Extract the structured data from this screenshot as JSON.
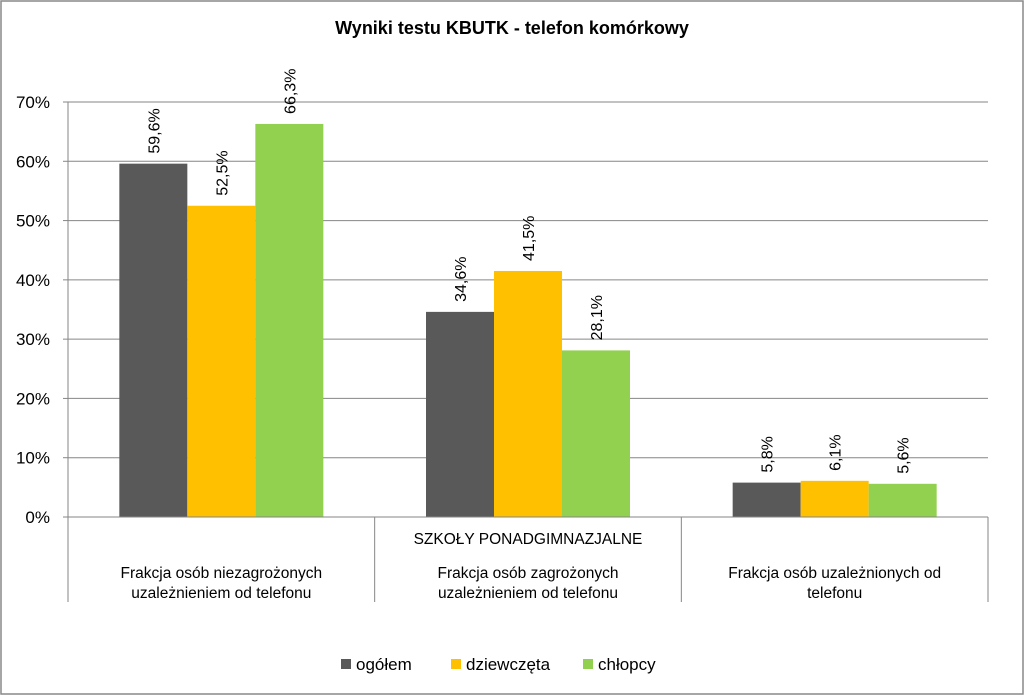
{
  "chart_data": {
    "type": "bar",
    "title": "Wyniki testu KBUTK - telefon komórkowy",
    "group_label": "SZKOŁY PONADGIMNAZJALNE",
    "categories": [
      [
        "Frakcja osób niezagrożonych",
        "uzależnieniem od telefonu"
      ],
      [
        "Frakcja osób zagrożonych",
        "uzależnieniem od telefonu"
      ],
      [
        "Frakcja osób uzależnionych od",
        "telefonu"
      ]
    ],
    "series": [
      {
        "name": "ogółem",
        "color": "#595959",
        "values": [
          59.6,
          34.6,
          5.8
        ],
        "labels": [
          "59,6%",
          "34,6%",
          "5,8%"
        ]
      },
      {
        "name": "dziewczęta",
        "color": "#FFC000",
        "values": [
          52.5,
          41.5,
          6.1
        ],
        "labels": [
          "52,5%",
          "41,5%",
          "6,1%"
        ]
      },
      {
        "name": "chłopcy",
        "color": "#92D050",
        "values": [
          66.3,
          28.1,
          5.6
        ],
        "labels": [
          "66,3%",
          "28,1%",
          "5,6%"
        ]
      }
    ],
    "ylim": [
      0,
      70
    ],
    "yticks": [
      0,
      10,
      20,
      30,
      40,
      50,
      60,
      70
    ],
    "ytick_labels": [
      "0%",
      "10%",
      "20%",
      "30%",
      "40%",
      "50%",
      "60%",
      "70%"
    ],
    "grid": true,
    "legend": "bottom"
  }
}
